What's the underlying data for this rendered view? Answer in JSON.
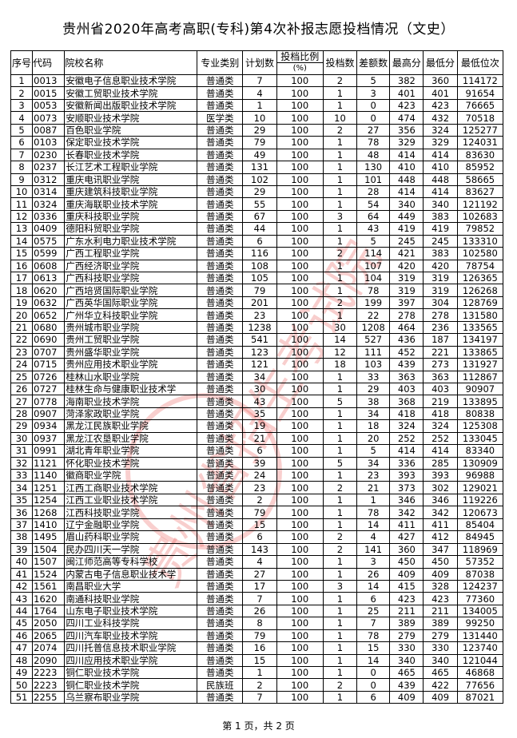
{
  "title": "贵州省2020年高考高职(专科)第4次补报志愿投档情况（文史）",
  "headers": {
    "seq": "序号",
    "code": "代码",
    "name": "院校名称",
    "category": "专业类别",
    "plan": "计划数",
    "ratio": "投档比例",
    "ratio_unit": "(%)",
    "admitted": "投档数",
    "shortfall": "差额数",
    "max": "最高分",
    "min": "最低分",
    "min_rank": "最低位次"
  },
  "rows": [
    [
      "1",
      "0013",
      "安徽电子信息职业技术学院",
      "普通类",
      "7",
      "100",
      "2",
      "5",
      "382",
      "360",
      "114172"
    ],
    [
      "2",
      "0015",
      "安徽工贸职业技术学院",
      "普通类",
      "4",
      "100",
      "1",
      "3",
      "401",
      "401",
      "91654"
    ],
    [
      "3",
      "0053",
      "安徽新闻出版职业技术学院",
      "普通类",
      "1",
      "100",
      "1",
      "0",
      "423",
      "423",
      "76665"
    ],
    [
      "4",
      "0073",
      "安顺职业技术学院",
      "医学类",
      "10",
      "100",
      "10",
      "0",
      "474",
      "432",
      "70518"
    ],
    [
      "5",
      "0087",
      "百色职业学院",
      "普通类",
      "29",
      "100",
      "2",
      "27",
      "356",
      "324",
      "125277"
    ],
    [
      "6",
      "0103",
      "保定职业技术学院",
      "普通类",
      "79",
      "100",
      "1",
      "78",
      "329",
      "329",
      "124031"
    ],
    [
      "7",
      "0230",
      "长春职业技术学院",
      "普通类",
      "49",
      "100",
      "1",
      "48",
      "414",
      "414",
      "83630"
    ],
    [
      "8",
      "0237",
      "长江艺术工程职业学院",
      "普通类",
      "131",
      "100",
      "1",
      "130",
      "410",
      "410",
      "85952"
    ],
    [
      "9",
      "0312",
      "重庆电讯职业学院",
      "普通类",
      "102",
      "100",
      "1",
      "101",
      "448",
      "448",
      "58665"
    ],
    [
      "10",
      "0314",
      "重庆建筑科技职业学院",
      "普通类",
      "29",
      "100",
      "1",
      "28",
      "414",
      "414",
      "83627"
    ],
    [
      "11",
      "0324",
      "重庆海联职业技术学院",
      "普通类",
      "55",
      "100",
      "1",
      "54",
      "340",
      "340",
      "121192"
    ],
    [
      "12",
      "0336",
      "重庆科技职业学院",
      "普通类",
      "67",
      "100",
      "3",
      "64",
      "449",
      "383",
      "102683"
    ],
    [
      "13",
      "0409",
      "德阳科贸职业学院",
      "普通类",
      "44",
      "100",
      "1",
      "43",
      "419",
      "419",
      "79852"
    ],
    [
      "14",
      "0575",
      "广东水利电力职业技术学院",
      "普通类",
      "6",
      "100",
      "1",
      "5",
      "245",
      "245",
      "133310"
    ],
    [
      "15",
      "0599",
      "广西工程职业学院",
      "普通类",
      "116",
      "100",
      "2",
      "114",
      "421",
      "383",
      "102580"
    ],
    [
      "16",
      "0608",
      "广西经济职业学院",
      "普通类",
      "108",
      "100",
      "1",
      "107",
      "420",
      "420",
      "78754"
    ],
    [
      "17",
      "0613",
      "广西科技职业学院",
      "普通类",
      "105",
      "100",
      "1",
      "104",
      "319",
      "319",
      "126365"
    ],
    [
      "18",
      "0620",
      "广西培贤国际职业学院",
      "普通类",
      "79",
      "100",
      "1",
      "78",
      "319",
      "319",
      "126268"
    ],
    [
      "19",
      "0632",
      "广西英华国际职业学院",
      "普通类",
      "201",
      "100",
      "2",
      "199",
      "397",
      "304",
      "128769"
    ],
    [
      "20",
      "0652",
      "广州华立科技职业学院",
      "普通类",
      "23",
      "100",
      "1",
      "22",
      "278",
      "278",
      "131580"
    ],
    [
      "21",
      "0680",
      "贵州城市职业学院",
      "普通类",
      "1238",
      "100",
      "30",
      "1208",
      "464",
      "236",
      "133565"
    ],
    [
      "22",
      "0690",
      "贵州工贸职业学院",
      "普通类",
      "541",
      "100",
      "14",
      "527",
      "436",
      "187",
      "134197"
    ],
    [
      "23",
      "0707",
      "贵州盛华职业学院",
      "普通类",
      "123",
      "100",
      "12",
      "111",
      "452",
      "221",
      "133865"
    ],
    [
      "24",
      "0715",
      "贵州应用技术职业学院",
      "普通类",
      "121",
      "100",
      "18",
      "103",
      "439",
      "273",
      "131927"
    ],
    [
      "25",
      "0726",
      "桂林山水职业学院",
      "普通类",
      "34",
      "100",
      "1",
      "33",
      "363",
      "363",
      "112867"
    ],
    [
      "26",
      "0727",
      "桂林生命与健康职业技术学",
      "普通类",
      "30",
      "100",
      "1",
      "29",
      "403",
      "403",
      "90907"
    ],
    [
      "27",
      "0778",
      "海南职业技术学院",
      "普通类",
      "43",
      "100",
      "5",
      "38",
      "368",
      "219",
      "133895"
    ],
    [
      "28",
      "0907",
      "菏泽家政职业学院",
      "普通类",
      "35",
      "100",
      "1",
      "34",
      "418",
      "418",
      "80838"
    ],
    [
      "29",
      "0934",
      "黑龙江民族职业学院",
      "普通类",
      "19",
      "100",
      "1",
      "18",
      "324",
      "324",
      "125308"
    ],
    [
      "30",
      "0937",
      "黑龙江农垦职业学院",
      "普通类",
      "21",
      "100",
      "1",
      "20",
      "252",
      "252",
      "133045"
    ],
    [
      "31",
      "0991",
      "湖北青年职业学院",
      "普通类",
      "6",
      "100",
      "1",
      "5",
      "414",
      "414",
      "83340"
    ],
    [
      "32",
      "1121",
      "怀化职业技术学院",
      "普通类",
      "39",
      "100",
      "5",
      "34",
      "336",
      "285",
      "130909"
    ],
    [
      "33",
      "1140",
      "徽商职业学院",
      "普通类",
      "24",
      "100",
      "1",
      "23",
      "393",
      "393",
      "96988"
    ],
    [
      "34",
      "1251",
      "江西工商职业技术学院",
      "普通类",
      "23",
      "100",
      "2",
      "21",
      "373",
      "302",
      "129021"
    ],
    [
      "35",
      "1254",
      "江西工业职业技术学院",
      "普通类",
      "2",
      "100",
      "1",
      "1",
      "346",
      "346",
      "119226"
    ],
    [
      "36",
      "1268",
      "江西科技职业学院",
      "普通类",
      "79",
      "100",
      "1",
      "78",
      "342",
      "342",
      "120673"
    ],
    [
      "37",
      "1410",
      "辽宁金融职业学院",
      "普通类",
      "15",
      "100",
      "1",
      "14",
      "411",
      "411",
      "85404"
    ],
    [
      "38",
      "1495",
      "眉山药科职业学院",
      "普通类",
      "6",
      "100",
      "2",
      "4",
      "427",
      "412",
      "84945"
    ],
    [
      "39",
      "1504",
      "民办四川天一学院",
      "普通类",
      "143",
      "100",
      "2",
      "141",
      "360",
      "347",
      "118969"
    ],
    [
      "40",
      "1507",
      "闽江师范高等专科学校",
      "普通类",
      "4",
      "100",
      "1",
      "3",
      "450",
      "450",
      "57352"
    ],
    [
      "41",
      "1524",
      "内蒙古电子信息职业技术学",
      "普通类",
      "27",
      "100",
      "1",
      "26",
      "409",
      "409",
      "87038"
    ],
    [
      "42",
      "1561",
      "南昌职业大学",
      "普通类",
      "17",
      "100",
      "3",
      "14",
      "415",
      "328",
      "124237"
    ],
    [
      "43",
      "1620",
      "南通科技职业学院",
      "普通类",
      "7",
      "100",
      "1",
      "6",
      "423",
      "423",
      "77360"
    ],
    [
      "44",
      "1764",
      "山东电子职业技术学院",
      "普通类",
      "26",
      "100",
      "1",
      "25",
      "211",
      "211",
      "134005"
    ],
    [
      "45",
      "2050",
      "四川工业科技学院",
      "普通类",
      "8",
      "100",
      "1",
      "7",
      "389",
      "389",
      "99250"
    ],
    [
      "46",
      "2065",
      "四川汽车职业技术学院",
      "普通类",
      "79",
      "100",
      "1",
      "78",
      "279",
      "279",
      "131440"
    ],
    [
      "47",
      "2074",
      "四川托普信息技术职业学院",
      "普通类",
      "16",
      "100",
      "1",
      "15",
      "330",
      "330",
      "123740"
    ],
    [
      "48",
      "2090",
      "四川应用技术职业学院",
      "普通类",
      "15",
      "100",
      "1",
      "14",
      "340",
      "340",
      "121044"
    ],
    [
      "49",
      "2223",
      "铜仁职业技术学院",
      "普通类",
      "1",
      "100",
      "1",
      "0",
      "465",
      "465",
      "46868"
    ],
    [
      "50",
      "2223",
      "铜仁职业技术学院",
      "民族班",
      "2",
      "100",
      "2",
      "0",
      "439",
      "422",
      "77656"
    ],
    [
      "51",
      "2255",
      "乌兰察布职业学院",
      "普通类",
      "7",
      "100",
      "1",
      "6",
      "409",
      "409",
      "87021"
    ]
  ],
  "footer": "第 1 页，共 2 页",
  "watermark": {
    "text": "贵州省招生考试院",
    "color": "#e8534f"
  }
}
